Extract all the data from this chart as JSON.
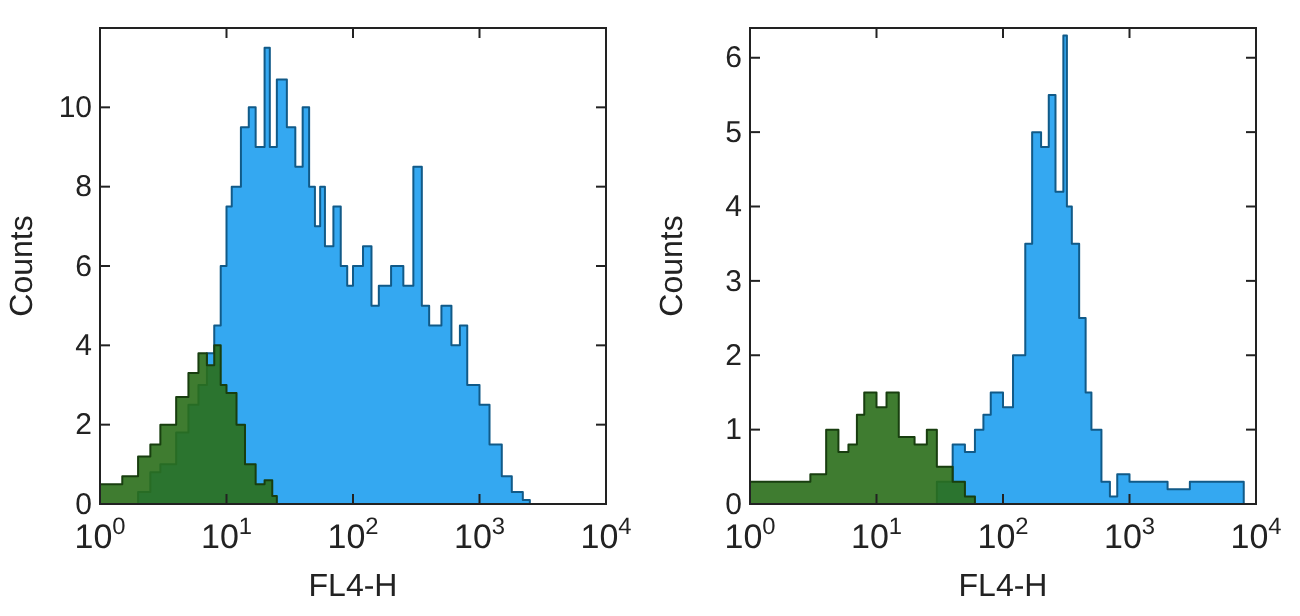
{
  "chart_data": [
    {
      "type": "area",
      "xlabel": "FL4-H",
      "ylabel": "Counts",
      "log": "x",
      "xlim": [
        1,
        10000
      ],
      "xticks": [
        {
          "value": 1,
          "label": "10$^{0}$"
        },
        {
          "value": 10,
          "label": "10$^{1}$"
        },
        {
          "value": 100,
          "label": "10$^{2}$"
        },
        {
          "value": 1000,
          "label": "10$^{3}$"
        },
        {
          "value": 10000,
          "label": "10$^{4}$"
        }
      ],
      "ylim": [
        0,
        12
      ],
      "yticks": [
        0,
        2,
        4,
        6,
        8,
        10
      ],
      "grid": false,
      "series": [
        {
          "color": "#1e9ff0",
          "x": [
            1.7,
            2,
            2.5,
            3,
            4,
            5,
            6,
            7,
            8,
            9,
            10,
            11,
            13,
            15,
            17,
            20,
            22,
            25,
            30,
            35,
            40,
            45,
            50,
            55,
            60,
            70,
            80,
            90,
            100,
            120,
            140,
            160,
            200,
            250,
            300,
            350,
            400,
            500,
            600,
            700,
            800,
            1000,
            1200,
            1500,
            1800,
            2200,
            2500
          ],
          "values": [
            0,
            0.3,
            0.8,
            1,
            1.8,
            2.5,
            3,
            3.8,
            4.5,
            6,
            7.5,
            8,
            9.5,
            10,
            9,
            11.5,
            9,
            10.7,
            9.5,
            8.5,
            10,
            8,
            7,
            8,
            6.5,
            7.5,
            6,
            5.5,
            6,
            6.5,
            5,
            5.5,
            6,
            5.5,
            8.5,
            5,
            4.5,
            5,
            4,
            4.5,
            3,
            2.5,
            1.5,
            0.7,
            0.3,
            0.1,
            0
          ]
        },
        {
          "color": "#2a6e1a",
          "x": [
            1,
            1.5,
            2,
            2.5,
            3,
            4,
            5,
            6,
            7,
            8,
            9,
            10,
            12,
            14,
            17,
            20,
            23,
            25
          ],
          "values": [
            0.5,
            0.7,
            1.2,
            1.5,
            2,
            2.7,
            3.3,
            3.8,
            3.5,
            4,
            3,
            2.8,
            2,
            1,
            0.5,
            0.6,
            0.2,
            0
          ]
        }
      ]
    },
    {
      "type": "area",
      "xlabel": "FL4-H",
      "ylabel": "Counts",
      "log": "x",
      "xlim": [
        1,
        10000
      ],
      "xticks": [
        {
          "value": 1,
          "label": "10$^{0}$"
        },
        {
          "value": 10,
          "label": "10$^{1}$"
        },
        {
          "value": 100,
          "label": "10$^{2}$"
        },
        {
          "value": 1000,
          "label": "10$^{3}$"
        },
        {
          "value": 10000,
          "label": "10$^{4}$"
        }
      ],
      "ylim": [
        0,
        6.4
      ],
      "yticks": [
        0,
        1,
        2,
        3,
        4,
        5,
        6
      ],
      "grid": false,
      "series": [
        {
          "color": "#1e9ff0",
          "x": [
            20,
            30,
            40,
            50,
            60,
            70,
            80,
            100,
            120,
            150,
            170,
            200,
            230,
            260,
            300,
            320,
            350,
            400,
            450,
            500,
            600,
            700,
            800,
            1000,
            1500,
            2000,
            3000,
            5000,
            7000,
            8000
          ],
          "values": [
            0,
            0.3,
            0.8,
            0.7,
            1,
            1.2,
            1.5,
            1.3,
            2,
            3.5,
            5,
            4.8,
            5.5,
            4.2,
            6.3,
            4,
            3.5,
            2.5,
            1.5,
            1,
            0.3,
            0.1,
            0.4,
            0.3,
            0.3,
            0.2,
            0.3,
            0.3,
            0.3,
            0
          ]
        },
        {
          "color": "#2a6e1a",
          "x": [
            1,
            1.5,
            2,
            3,
            4,
            5,
            6,
            7,
            8,
            10,
            12,
            15,
            20,
            25,
            30,
            40,
            50,
            60
          ],
          "values": [
            0.3,
            0.3,
            0.3,
            0.4,
            1,
            0.7,
            0.8,
            1.2,
            1.5,
            1.3,
            1.5,
            0.9,
            0.8,
            1,
            0.5,
            0.3,
            0.1,
            0
          ]
        }
      ]
    }
  ]
}
